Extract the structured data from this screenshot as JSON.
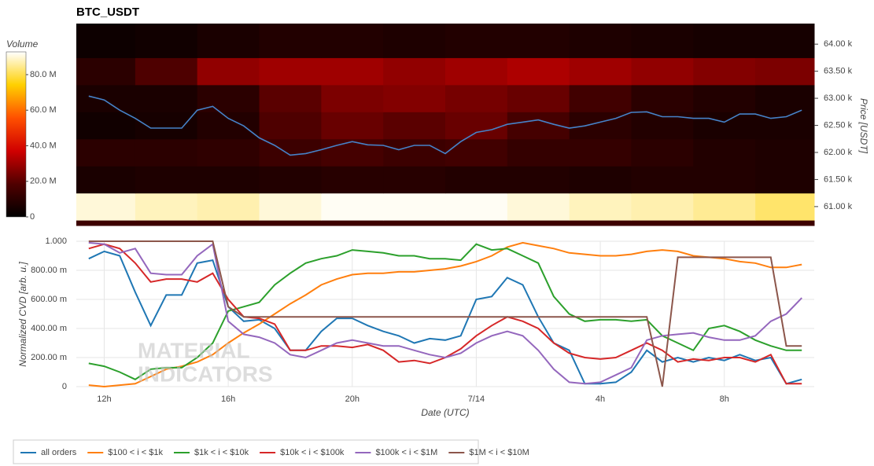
{
  "chart_data": [
    {
      "type": "heatmap",
      "title": "BTC_USDT",
      "colorbar_title": "Volume",
      "y2label": "Price [USDT]",
      "xlim": [
        11.1,
        34.9
      ],
      "x_bins": [
        11.1,
        13,
        15,
        17,
        19,
        21,
        23,
        25,
        27,
        29,
        31,
        33,
        34.9
      ],
      "y_bins": [
        60650,
        60750,
        61250,
        61750,
        62250,
        62750,
        63250,
        63750,
        64380
      ],
      "z": [
        [
          14000000,
          14000000,
          14000000,
          14000000,
          14000000,
          14000000,
          14000000,
          14000000,
          14000000,
          14000000,
          14000000,
          14000000
        ],
        [
          90000000,
          88000000,
          87000000,
          90000000,
          92000000,
          92000000,
          92000000,
          90000000,
          88000000,
          87000000,
          85000000,
          82000000
        ],
        [
          6000000,
          7000000,
          7000000,
          8000000,
          9000000,
          9000000,
          8000000,
          8000000,
          7000000,
          8000000,
          8000000,
          7000000
        ],
        [
          10000000,
          10000000,
          11000000,
          14000000,
          16000000,
          14000000,
          15000000,
          12000000,
          12000000,
          10000000,
          8000000,
          7000000
        ],
        [
          4000000,
          5000000,
          8000000,
          18000000,
          22000000,
          20000000,
          22000000,
          16000000,
          10000000,
          8000000,
          6000000,
          6000000
        ],
        [
          6000000,
          6000000,
          10000000,
          20000000,
          25000000,
          26000000,
          24000000,
          22000000,
          15000000,
          10000000,
          8000000,
          6000000
        ],
        [
          10000000,
          18000000,
          28000000,
          30000000,
          30000000,
          28000000,
          30000000,
          32000000,
          30000000,
          28000000,
          26000000,
          25000000
        ],
        [
          3000000,
          4000000,
          6000000,
          8000000,
          8000000,
          7000000,
          8000000,
          8000000,
          7000000,
          6000000,
          5000000,
          5000000
        ]
      ],
      "zlim": [
        0,
        92800000
      ],
      "zticks": [
        0,
        {
          "value": 20000000,
          "label": "20.0 M"
        },
        {
          "value": 40000000,
          "label": "40.0 M"
        },
        {
          "value": 60000000,
          "label": "60.0 M"
        },
        {
          "value": 80000000,
          "label": "80.0 M"
        }
      ],
      "colorscale": [
        "#000000",
        "#500000",
        "#d00000",
        "#ff5000",
        "#ffd000",
        "#ffffff"
      ],
      "y2lim": [
        60650,
        64380
      ],
      "y2ticks": [
        {
          "value": 61000,
          "label": "61.00 k"
        },
        {
          "value": 61500,
          "label": "61.50 k"
        },
        {
          "value": 62000,
          "label": "62.00 k"
        },
        {
          "value": 62500,
          "label": "62.50 k"
        },
        {
          "value": 63000,
          "label": "63.00 k"
        },
        {
          "value": 63500,
          "label": "63.50 k"
        },
        {
          "value": 64000,
          "label": "64.00 k"
        }
      ],
      "x": [
        11.5,
        12,
        12.5,
        13,
        13.5,
        14,
        14.5,
        15,
        15.5,
        16,
        16.5,
        17,
        17.5,
        18,
        18.5,
        19,
        19.5,
        20,
        20.5,
        21,
        21.5,
        22,
        22.5,
        23,
        23.5,
        24,
        24.5,
        25,
        25.5,
        26,
        26.5,
        27,
        27.5,
        28,
        28.5,
        29,
        29.5,
        30,
        30.5,
        31,
        31.5,
        32,
        32.5,
        33,
        33.5,
        34,
        34.5
      ],
      "series": [
        {
          "color": "#4682c8",
          "axis": "y2",
          "values": [
            63040,
            62970,
            62780,
            62630,
            62450,
            62450,
            62450,
            62780,
            62850,
            62630,
            62490,
            62270,
            62130,
            61950,
            61980,
            62050,
            62130,
            62200,
            62140,
            62130,
            62050,
            62130,
            62130,
            61980,
            62200,
            62370,
            62420,
            62520,
            62560,
            62600,
            62520,
            62450,
            62490,
            62560,
            62630,
            62740,
            62750,
            62660,
            62660,
            62630,
            62630,
            62560,
            62710,
            62710,
            62630,
            62660,
            62780
          ]
        }
      ]
    },
    {
      "type": "line",
      "xlabel": "Date (UTC)",
      "ylabel": "Normalized CVD [arb. u.]",
      "watermark": [
        "MATERIAL",
        "INDICATORS"
      ],
      "grid": true,
      "xlim": [
        11.1,
        34.9
      ],
      "xticks": [
        {
          "value": 12,
          "label": "12h"
        },
        {
          "value": 16,
          "label": "16h"
        },
        {
          "value": 20,
          "label": "20h"
        },
        {
          "value": 24,
          "label": "7/14"
        },
        {
          "value": 28,
          "label": "4h"
        },
        {
          "value": 32,
          "label": "8h"
        }
      ],
      "ylim": [
        0,
        1
      ],
      "yticks": [
        0,
        {
          "value": 0.2,
          "label": "200.00 m"
        },
        {
          "value": 0.4,
          "label": "400.00 m"
        },
        {
          "value": 0.6,
          "label": "600.00 m"
        },
        {
          "value": 0.8,
          "label": "800.00 m"
        },
        {
          "value": 1,
          "label": "1.000"
        }
      ],
      "x": [
        11.5,
        12,
        12.5,
        13,
        13.5,
        14,
        14.5,
        15,
        15.5,
        16,
        16.5,
        17,
        17.5,
        18,
        18.5,
        19,
        19.5,
        20,
        20.5,
        21,
        21.5,
        22,
        22.5,
        23,
        23.5,
        24,
        24.5,
        25,
        25.5,
        26,
        26.5,
        27,
        27.5,
        28,
        28.5,
        29,
        29.5,
        30,
        30.5,
        31,
        31.5,
        32,
        32.5,
        33,
        33.5,
        34,
        34.5
      ],
      "series": [
        {
          "name": "all orders",
          "color": "#1f77b4",
          "values": [
            0.88,
            0.93,
            0.9,
            0.65,
            0.42,
            0.63,
            0.63,
            0.85,
            0.87,
            0.55,
            0.45,
            0.46,
            0.4,
            0.25,
            0.25,
            0.38,
            0.47,
            0.47,
            0.42,
            0.38,
            0.35,
            0.3,
            0.33,
            0.32,
            0.35,
            0.6,
            0.62,
            0.75,
            0.7,
            0.48,
            0.3,
            0.25,
            0.02,
            0.02,
            0.03,
            0.1,
            0.25,
            0.17,
            0.2,
            0.17,
            0.2,
            0.18,
            0.22,
            0.18,
            0.2,
            0.02,
            0.05
          ]
        },
        {
          "name": "$100 < i < $1k",
          "color": "#ff7f0e",
          "values": [
            0.01,
            0,
            0.01,
            0.02,
            0.07,
            0.12,
            0.14,
            0.17,
            0.22,
            0.3,
            0.37,
            0.43,
            0.5,
            0.57,
            0.63,
            0.7,
            0.74,
            0.77,
            0.78,
            0.78,
            0.79,
            0.79,
            0.8,
            0.81,
            0.83,
            0.86,
            0.9,
            0.96,
            0.99,
            0.97,
            0.95,
            0.92,
            0.91,
            0.9,
            0.9,
            0.91,
            0.93,
            0.94,
            0.93,
            0.9,
            0.89,
            0.88,
            0.86,
            0.85,
            0.82,
            0.82,
            0.84
          ]
        },
        {
          "name": "$1k < i < $10k",
          "color": "#2ca02c",
          "values": [
            0.16,
            0.14,
            0.1,
            0.05,
            0.12,
            0.13,
            0.13,
            0.2,
            0.3,
            0.52,
            0.55,
            0.58,
            0.7,
            0.78,
            0.85,
            0.88,
            0.9,
            0.94,
            0.93,
            0.92,
            0.9,
            0.9,
            0.88,
            0.88,
            0.87,
            0.98,
            0.94,
            0.95,
            0.9,
            0.85,
            0.62,
            0.5,
            0.45,
            0.46,
            0.46,
            0.45,
            0.46,
            0.35,
            0.3,
            0.25,
            0.4,
            0.42,
            0.38,
            0.32,
            0.28,
            0.25,
            0.25
          ]
        },
        {
          "name": "$10k < i < $100k",
          "color": "#d62728",
          "values": [
            0.95,
            0.98,
            0.95,
            0.85,
            0.72,
            0.74,
            0.74,
            0.72,
            0.78,
            0.6,
            0.48,
            0.47,
            0.43,
            0.25,
            0.25,
            0.28,
            0.28,
            0.27,
            0.29,
            0.25,
            0.17,
            0.18,
            0.16,
            0.2,
            0.26,
            0.35,
            0.42,
            0.48,
            0.45,
            0.4,
            0.3,
            0.23,
            0.2,
            0.19,
            0.2,
            0.25,
            0.3,
            0.25,
            0.17,
            0.19,
            0.18,
            0.2,
            0.2,
            0.17,
            0.22,
            0.02,
            0.02
          ]
        },
        {
          "name": "$100k < i < $1M",
          "color": "#9467bd",
          "values": [
            0.99,
            0.98,
            0.92,
            0.95,
            0.78,
            0.77,
            0.77,
            0.9,
            0.98,
            0.45,
            0.36,
            0.34,
            0.3,
            0.22,
            0.2,
            0.25,
            0.3,
            0.32,
            0.3,
            0.28,
            0.28,
            0.25,
            0.22,
            0.2,
            0.23,
            0.3,
            0.35,
            0.38,
            0.35,
            0.25,
            0.12,
            0.03,
            0.02,
            0.03,
            0.08,
            0.13,
            0.32,
            0.35,
            0.36,
            0.37,
            0.34,
            0.32,
            0.32,
            0.35,
            0.45,
            0.5,
            0.61
          ]
        },
        {
          "name": "$1M < i < $10M",
          "color": "#8c564b",
          "values": [
            1,
            1,
            1,
            1,
            1,
            1,
            1,
            1,
            1,
            0.55,
            0.48,
            0.48,
            0.48,
            0.48,
            0.48,
            0.48,
            0.48,
            0.48,
            0.48,
            0.48,
            0.48,
            0.48,
            0.48,
            0.48,
            0.48,
            0.48,
            0.48,
            0.48,
            0.48,
            0.48,
            0.48,
            0.48,
            0.48,
            0.48,
            0.48,
            0.48,
            0.48,
            0,
            0.89,
            0.89,
            0.89,
            0.89,
            0.89,
            0.89,
            0.89,
            0.28,
            0.28
          ]
        }
      ]
    }
  ]
}
